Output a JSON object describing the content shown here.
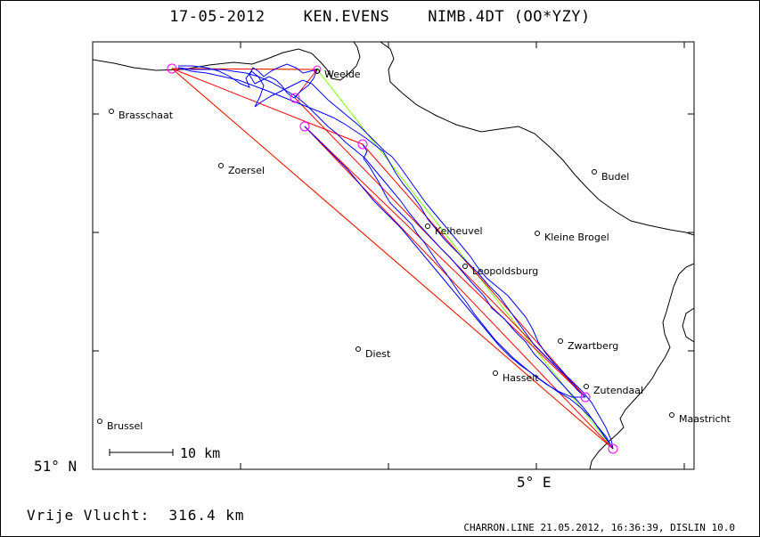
{
  "header": {
    "date": "17-05-2012",
    "pilot": "KEN.EVENS",
    "glider": "NIMB.4DT (OO*YZY)"
  },
  "axes": {
    "lat_label": "51° N",
    "lon_label": "5° E"
  },
  "scale_bar": {
    "label": "10 km"
  },
  "summary": {
    "distance_text": "Vrije Vlucht:  316.4 km"
  },
  "footer": {
    "text": "CHARRON.LINE 21.05.2012, 16:36:39, DISLIN 10.0"
  },
  "cities": [
    {
      "name": "Weelde"
    },
    {
      "name": "Brasschaat"
    },
    {
      "name": "Zoersel"
    },
    {
      "name": "Budel"
    },
    {
      "name": "Keiheuvel"
    },
    {
      "name": "Kleine Brogel"
    },
    {
      "name": "Leopoldsburg"
    },
    {
      "name": "Zwartberg"
    },
    {
      "name": "Diest"
    },
    {
      "name": "Hasselt"
    },
    {
      "name": "Zutendaal"
    },
    {
      "name": "Maastricht"
    },
    {
      "name": "Brussel"
    }
  ],
  "colors": {
    "track": "#0000ff",
    "task_lines": "#ff0000",
    "fai_triangle": "#80ff00",
    "turnpoint_markers": "#ff00ff",
    "border": "#000000"
  }
}
